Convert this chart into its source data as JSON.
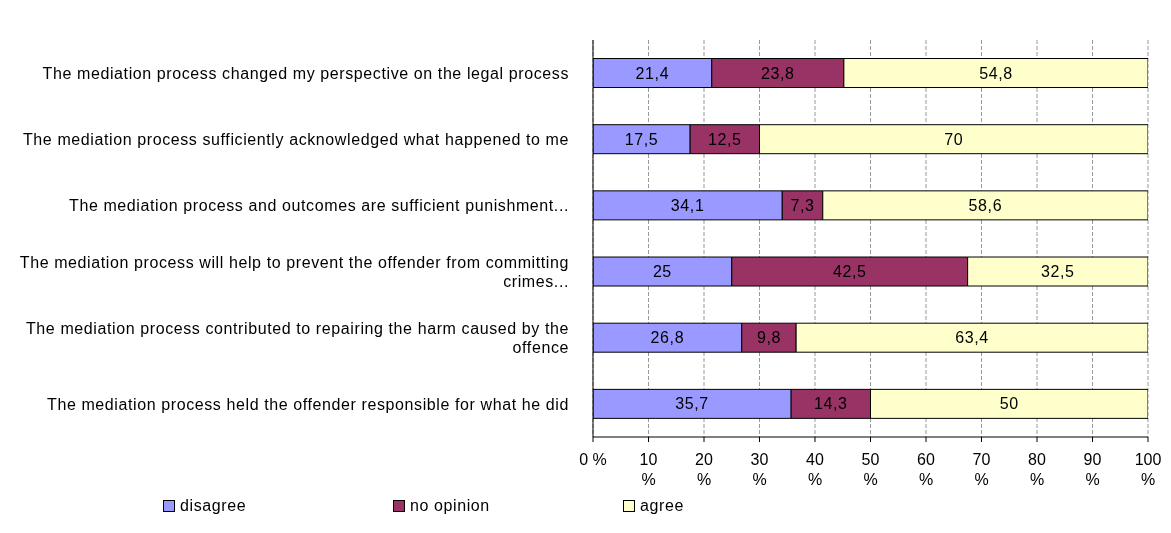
{
  "chart_data": {
    "type": "bar",
    "orientation": "horizontal",
    "stacked": true,
    "categories": [
      "The mediation process changed my perspective on the legal process",
      "The mediation process sufficiently acknowledged what happened to me",
      "The mediation process and outcomes are sufficient punishment...",
      "The mediation process will help to prevent the offender from committing crimes...",
      "The mediation process contributed to repairing the harm caused by the offence",
      "The mediation process held the offender responsible for what he did"
    ],
    "series": [
      {
        "name": "disagree",
        "color": "#9999ff",
        "values": [
          21.4,
          17.5,
          34.1,
          25,
          26.8,
          35.7
        ],
        "value_labels": [
          "21,4",
          "17,5",
          "34,1",
          "25",
          "26,8",
          "35,7"
        ]
      },
      {
        "name": "no opinion",
        "color": "#993366",
        "values": [
          23.8,
          12.5,
          7.3,
          42.5,
          9.8,
          14.3
        ],
        "value_labels": [
          "23,8",
          "12,5",
          "7,3",
          "42,5",
          "9,8",
          "14,3"
        ]
      },
      {
        "name": "agree",
        "color": "#ffffcc",
        "values": [
          54.8,
          70,
          58.6,
          32.5,
          63.4,
          50
        ],
        "value_labels": [
          "54,8",
          "70",
          "58,6",
          "32,5",
          "63,4",
          "50"
        ]
      }
    ],
    "xlim": [
      0,
      100
    ],
    "xticks": [
      {
        "value": 0,
        "label": "0 %"
      },
      {
        "value": 10,
        "label": "10 %"
      },
      {
        "value": 20,
        "label": "20 %"
      },
      {
        "value": 30,
        "label": "30 %"
      },
      {
        "value": 40,
        "label": "40 %"
      },
      {
        "value": 50,
        "label": "50 %"
      },
      {
        "value": 60,
        "label": "60 %"
      },
      {
        "value": 70,
        "label": "70 %"
      },
      {
        "value": 80,
        "label": "80 %"
      },
      {
        "value": 90,
        "label": "90 %"
      },
      {
        "value": 100,
        "label": "100 %"
      }
    ],
    "grid": "x",
    "legend": "bottom left"
  }
}
